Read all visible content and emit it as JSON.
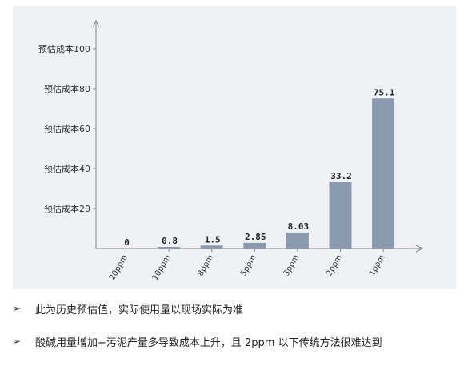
{
  "chart_data": {
    "type": "bar",
    "categories": [
      "20ppm",
      "10ppm",
      "8ppm",
      "5ppm",
      "3ppm",
      "2ppm",
      "1ppm"
    ],
    "values": [
      0,
      0.8,
      1.5,
      2.85,
      8.03,
      33.2,
      75.1
    ],
    "value_labels": [
      "0",
      "0.8",
      "1.5",
      "2.85",
      "8.03",
      "33.2",
      "75.1"
    ],
    "yticks": [
      {
        "value": 20,
        "label": "预估成本20"
      },
      {
        "value": 40,
        "label": "预估成本40"
      },
      {
        "value": 60,
        "label": "预估成本60"
      },
      {
        "value": 80,
        "label": "预估成本80"
      },
      {
        "value": 100,
        "label": "预估成本100"
      }
    ],
    "ylim": [
      0,
      100
    ],
    "grid": false,
    "bar_color": "#8c9ab0"
  },
  "notes": {
    "bullet": "➢",
    "items": [
      "此为历史预估值，实际使用量以现场实际为准",
      "酸碱用量增加+污泥产量多导致成本上升，且 2ppm 以下传统方法很难达到"
    ]
  }
}
